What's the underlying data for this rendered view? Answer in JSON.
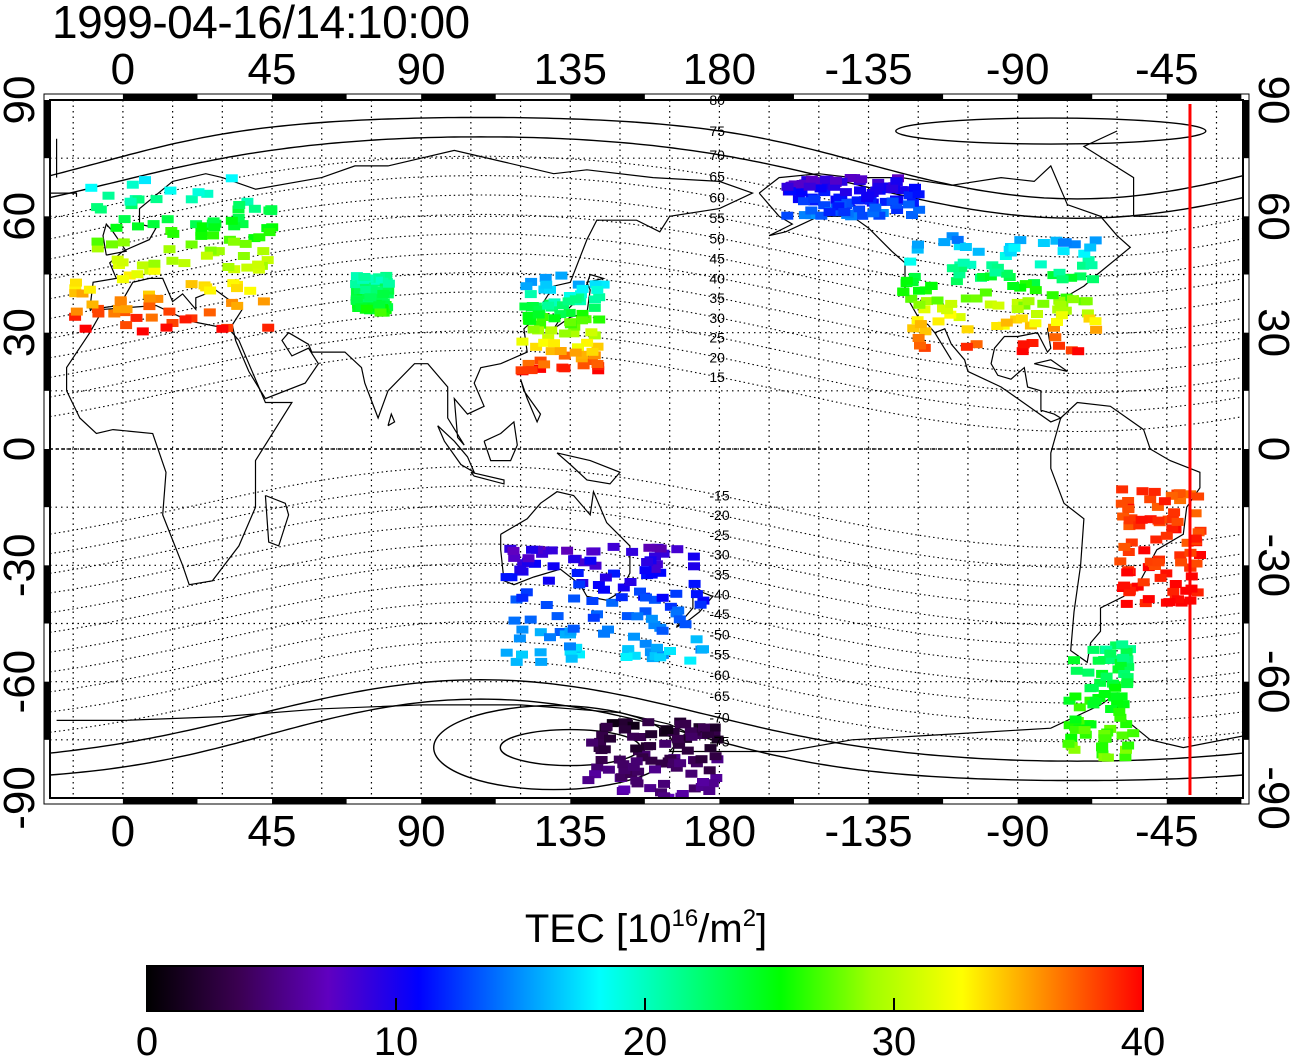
{
  "timestamp": "1999-04-16/14:10:00",
  "map": {
    "projection": "equirectangular",
    "central_meridian": 0,
    "lon_range": [
      -22,
      338
    ],
    "lat_range": [
      -90,
      90
    ],
    "grid": "dotted 15 degrees",
    "top_lon_ticks": [
      "0",
      "45",
      "90",
      "135",
      "180",
      "-135",
      "-90",
      "-45"
    ],
    "bottom_lon_ticks": [
      "0",
      "45",
      "90",
      "135",
      "180",
      "-135",
      "-90",
      "-45"
    ],
    "lat_ticks": [
      "90",
      "60",
      "30",
      "0",
      "-30",
      "-60",
      "-90"
    ],
    "magnetic_latitude_labels_north": [
      "80",
      "75",
      "70",
      "65",
      "60",
      "55",
      "50",
      "45",
      "40",
      "35",
      "30",
      "25",
      "20",
      "15"
    ],
    "magnetic_latitude_labels_south": [
      "-15",
      "-20",
      "-25",
      "-30",
      "-35",
      "-40",
      "-45",
      "-50",
      "-55",
      "-60",
      "-65",
      "-70",
      "-75"
    ],
    "terminator_line": {
      "color": "#ff0000",
      "lon": -38
    }
  },
  "colorbar": {
    "title_main": "TEC  [10",
    "title_exp": "16",
    "title_mid": "/m",
    "title_exp2": "2",
    "title_end": "]",
    "min": 0,
    "max": 40,
    "tick_labels": [
      "0",
      "10",
      "20",
      "30",
      "40"
    ],
    "colors": [
      "#000000",
      "#3a0050",
      "#6000c0",
      "#0000ff",
      "#0080ff",
      "#00ffff",
      "#00ff80",
      "#00ff00",
      "#a0ff00",
      "#ffff00",
      "#ff8000",
      "#ff0000"
    ]
  },
  "chart_data": {
    "type": "heatmap",
    "title": "1999-04-16/14:10:00",
    "colorbar_label": "TEC [10^16/m^2]",
    "value_range": [
      0,
      40
    ],
    "regions": [
      {
        "lon": [
          -15,
          45
        ],
        "lat": [
          30,
          70
        ],
        "tec_range": [
          18,
          40
        ]
      },
      {
        "lon": [
          70,
          80
        ],
        "lat": [
          35,
          45
        ],
        "tec_range": [
          20,
          26
        ]
      },
      {
        "lon": [
          120,
          145
        ],
        "lat": [
          20,
          45
        ],
        "tec_range": [
          14,
          40
        ]
      },
      {
        "lon": [
          -125,
          -65
        ],
        "lat": [
          25,
          55
        ],
        "tec_range": [
          14,
          40
        ]
      },
      {
        "lon": [
          -160,
          -120
        ],
        "lat": [
          60,
          70
        ],
        "tec_range": [
          8,
          14
        ]
      },
      {
        "lon": [
          -60,
          -35
        ],
        "lat": [
          -40,
          -10
        ],
        "tec_range": [
          38,
          40
        ]
      },
      {
        "lon": [
          -75,
          -55
        ],
        "lat": [
          -80,
          -50
        ],
        "tec_range": [
          22,
          28
        ]
      },
      {
        "lon": [
          115,
          175
        ],
        "lat": [
          -55,
          -25
        ],
        "tec_range": [
          8,
          17
        ]
      },
      {
        "lon": [
          140,
          180
        ],
        "lat": [
          -90,
          -70
        ],
        "tec_range": [
          2,
          6
        ]
      }
    ]
  }
}
